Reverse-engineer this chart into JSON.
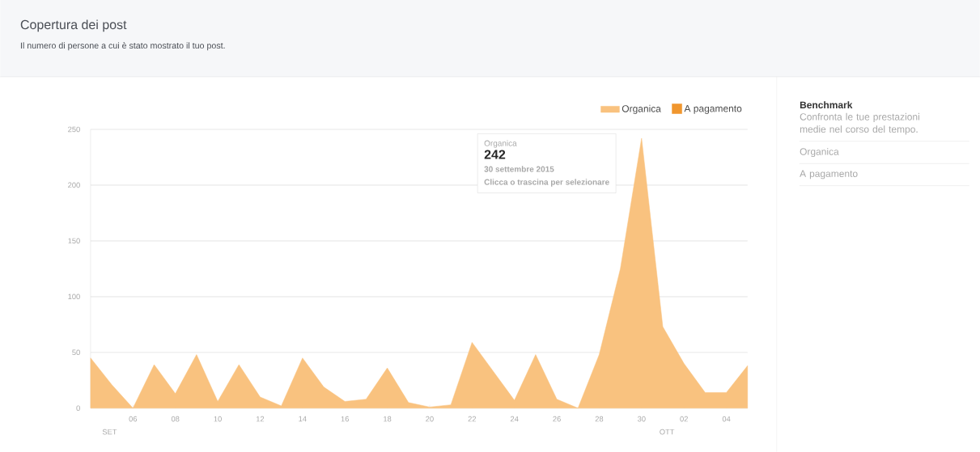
{
  "chart_data": {
    "type": "area",
    "title": "Copertura dei post",
    "subtitle": "Il numero di persone a cui è stato mostrato il tuo post.",
    "x": [
      "2015-09-04",
      "2015-09-05",
      "2015-09-06",
      "2015-09-07",
      "2015-09-08",
      "2015-09-09",
      "2015-09-10",
      "2015-09-11",
      "2015-09-12",
      "2015-09-13",
      "2015-09-14",
      "2015-09-15",
      "2015-09-16",
      "2015-09-17",
      "2015-09-18",
      "2015-09-19",
      "2015-09-20",
      "2015-09-21",
      "2015-09-22",
      "2015-09-23",
      "2015-09-24",
      "2015-09-25",
      "2015-09-26",
      "2015-09-27",
      "2015-09-28",
      "2015-09-29",
      "2015-09-30",
      "2015-10-01",
      "2015-10-02",
      "2015-10-03",
      "2015-10-04",
      "2015-10-05"
    ],
    "series": [
      {
        "name": "Organica",
        "color": "#f9c27f",
        "values": [
          45,
          21,
          0,
          39,
          13,
          48,
          6,
          39,
          10,
          2,
          45,
          19,
          6,
          8,
          36,
          5,
          1,
          3,
          59,
          33,
          7,
          48,
          8,
          0,
          48,
          125,
          242,
          73,
          40,
          14,
          14,
          38
        ]
      },
      {
        "name": "A pagamento",
        "color": "#f0962e",
        "values": [
          null,
          null,
          null,
          null,
          null,
          null,
          null,
          null,
          null,
          null,
          null,
          null,
          null,
          null,
          null,
          null,
          null,
          null,
          null,
          null,
          null,
          null,
          null,
          null,
          null,
          null,
          null,
          null,
          null,
          null,
          null,
          null
        ]
      }
    ],
    "xlim": [
      "2015-09-04",
      "2015-10-05"
    ],
    "ylim": [
      0,
      250
    ],
    "xticks": [
      {
        "value": "2015-09-06",
        "label": "06"
      },
      {
        "value": "2015-09-08",
        "label": "08"
      },
      {
        "value": "2015-09-10",
        "label": "10"
      },
      {
        "value": "2015-09-12",
        "label": "12"
      },
      {
        "value": "2015-09-14",
        "label": "14"
      },
      {
        "value": "2015-09-16",
        "label": "16"
      },
      {
        "value": "2015-09-18",
        "label": "18"
      },
      {
        "value": "2015-09-20",
        "label": "20"
      },
      {
        "value": "2015-09-22",
        "label": "22"
      },
      {
        "value": "2015-09-24",
        "label": "24"
      },
      {
        "value": "2015-09-26",
        "label": "26"
      },
      {
        "value": "2015-09-28",
        "label": "28"
      },
      {
        "value": "2015-09-30",
        "label": "30"
      },
      {
        "value": "2015-10-02",
        "label": "02"
      },
      {
        "value": "2015-10-04",
        "label": "04"
      }
    ],
    "yticks": [
      0,
      50,
      100,
      150,
      200,
      250
    ],
    "grid": "y",
    "legend": "top right",
    "annotations": [
      "Organica",
      "242",
      "30 settembre 2015",
      "Clicca o trascina per selezionare",
      "SET",
      "OTT",
      "Benchmark",
      "Confronta le tue prestazioni medie nel corso del tempo.",
      "Organica",
      "A pagamento"
    ]
  }
}
